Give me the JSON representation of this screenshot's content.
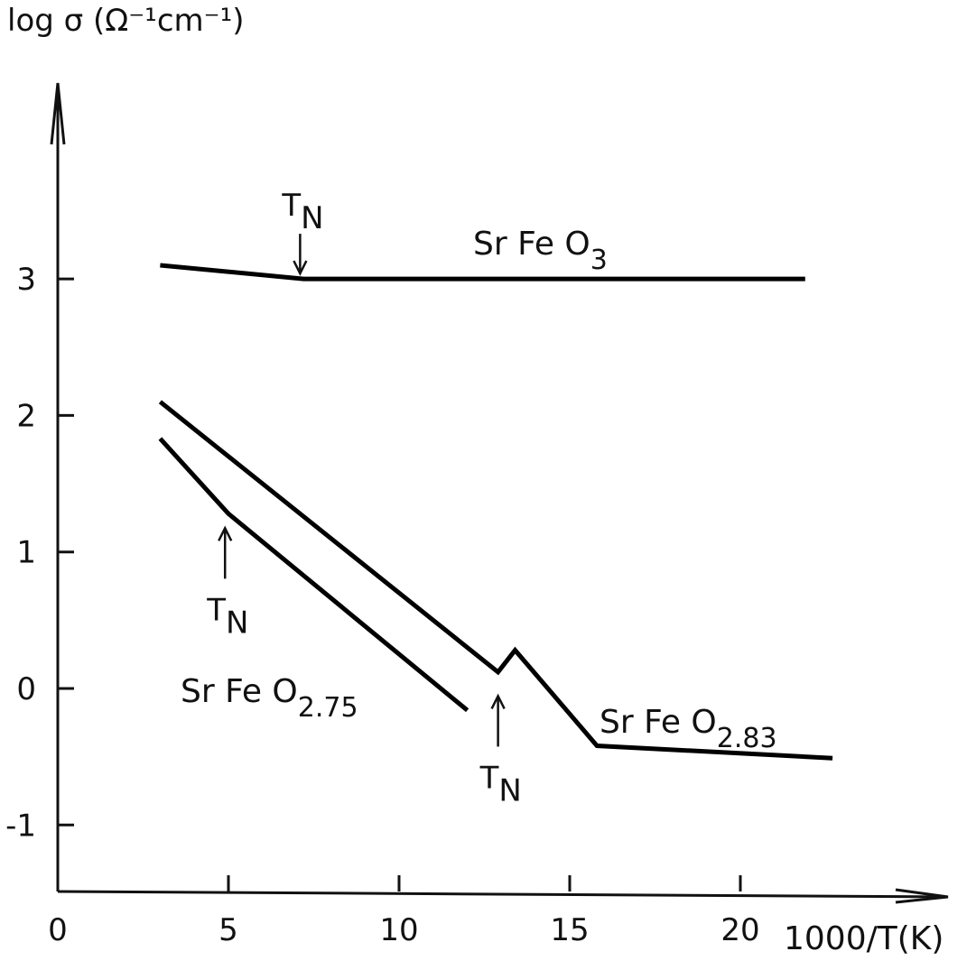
{
  "chart_data": {
    "type": "line",
    "ylabel": "log σ (Ω⁻¹cm⁻¹)",
    "xlabel": "1000/T(K)",
    "xlim": [
      0,
      26
    ],
    "ylim": [
      -1.5,
      4.5
    ],
    "x_ticks": [
      "0",
      "5",
      "10",
      "15",
      "20"
    ],
    "x_tick_values": [
      0,
      5,
      10,
      15,
      20
    ],
    "y_ticks": [
      "-1",
      "0",
      "1",
      "2",
      "3"
    ],
    "y_tick_values": [
      -1,
      0,
      1,
      2,
      3
    ],
    "grid": false,
    "series": [
      {
        "name": "Sr Fe O3",
        "label_main": "Sr Fe O",
        "label_sub": "3",
        "x": [
          3.0,
          7.2,
          21.9
        ],
        "y": [
          3.1,
          3.0,
          3.0
        ]
      },
      {
        "name": "Sr Fe O2.83",
        "label_main": "Sr Fe O",
        "label_sub": "2.83",
        "x": [
          3.0,
          12.9,
          13.4,
          15.8,
          22.7
        ],
        "y": [
          2.1,
          0.12,
          0.28,
          -0.42,
          -0.51
        ]
      },
      {
        "name": "Sr Fe O2.75",
        "label_main": "Sr Fe O",
        "label_sub": "2.75",
        "x": [
          3.0,
          5.0,
          12.0
        ],
        "y": [
          1.83,
          1.28,
          -0.16
        ]
      }
    ],
    "annotations": [
      {
        "text": "T",
        "sub": "N",
        "x": 7.1,
        "y": 3.0,
        "direction": "down"
      },
      {
        "text": "T",
        "sub": "N",
        "x": 4.9,
        "y": 1.28,
        "direction": "up"
      },
      {
        "text": "T",
        "sub": "N",
        "x": 12.9,
        "y": 0.05,
        "direction": "up"
      }
    ]
  }
}
